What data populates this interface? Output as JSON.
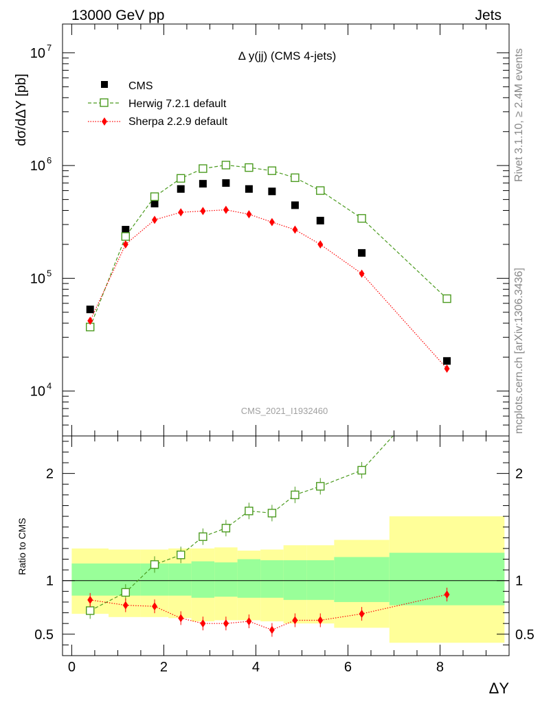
{
  "header": {
    "left": "13000 GeV pp",
    "right": "Jets"
  },
  "side_labels": {
    "rivet": "Rivet 3.1.10, ≥ 2.4M events",
    "source": "mcplots.cern.ch [arXiv:1306.3436]"
  },
  "chart_data": [
    {
      "type": "scatter",
      "title": "Δ y(jj) (CMS 4-jets)",
      "analysis_tag": "CMS_2021_I1932460",
      "ylabel": "dσ/dΔY [pb]",
      "xlabel": "ΔY",
      "xlim": [
        -0.2,
        9.5
      ],
      "ylim": [
        4000,
        18000000
      ],
      "yscale": "log",
      "yticks": [
        {
          "value": 10000,
          "base": "10",
          "exp": "4"
        },
        {
          "value": 100000,
          "base": "10",
          "exp": "5"
        },
        {
          "value": 1000000,
          "base": "10",
          "exp": "6"
        },
        {
          "value": 10000000,
          "base": "10",
          "exp": "7"
        }
      ],
      "legend_position": "top-left",
      "series": [
        {
          "name": "CMS",
          "color": "#000000",
          "marker": "filled-square",
          "x": [
            0.4,
            1.17,
            1.8,
            2.37,
            2.85,
            3.35,
            3.85,
            4.35,
            4.85,
            5.4,
            6.3,
            8.15
          ],
          "y": [
            53000,
            270000,
            460000,
            620000,
            690000,
            700000,
            620000,
            590000,
            445000,
            325000,
            168000,
            18500
          ]
        },
        {
          "name": "Herwig 7.2.1 default",
          "color": "#4a9a1e",
          "marker": "open-square",
          "line": "dashed",
          "x": [
            0.4,
            1.17,
            1.8,
            2.37,
            2.85,
            3.35,
            3.85,
            4.35,
            4.85,
            5.4,
            6.3,
            8.15
          ],
          "y": [
            37000,
            235000,
            530000,
            770000,
            940000,
            1010000,
            960000,
            900000,
            780000,
            600000,
            340000,
            66000
          ]
        },
        {
          "name": "Sherpa 2.2.9 default",
          "color": "#ff0000",
          "marker": "filled-diamond",
          "line": "dotted",
          "x": [
            0.4,
            1.17,
            1.8,
            2.37,
            2.85,
            3.35,
            3.85,
            4.35,
            4.85,
            5.4,
            6.3,
            8.15
          ],
          "y": [
            42000,
            200000,
            330000,
            385000,
            395000,
            405000,
            370000,
            315000,
            270000,
            200000,
            110000,
            15800
          ]
        }
      ]
    },
    {
      "type": "scatter",
      "ylabel": "Ratio to CMS",
      "xlabel": "ΔY",
      "xlim": [
        -0.2,
        9.5
      ],
      "ylim": [
        0.3,
        2.35
      ],
      "yticks": [
        {
          "value": 0.5,
          "label": "0.5"
        },
        {
          "value": 1,
          "label": "1"
        },
        {
          "value": 2,
          "label": "2"
        }
      ],
      "xticks": [
        {
          "value": 0,
          "label": "0"
        },
        {
          "value": 2,
          "label": "2"
        },
        {
          "value": 4,
          "label": "4"
        },
        {
          "value": 6,
          "label": "6"
        },
        {
          "value": 8,
          "label": "8"
        }
      ],
      "reference_line": 1,
      "uncertainty_bands": [
        {
          "x0": 0.0,
          "x1": 0.8,
          "stat_lo": 0.86,
          "stat_hi": 1.16,
          "tot_lo": 0.69,
          "tot_hi": 1.3
        },
        {
          "x0": 0.8,
          "x1": 1.5,
          "stat_lo": 0.86,
          "stat_hi": 1.16,
          "tot_lo": 0.66,
          "tot_hi": 1.29
        },
        {
          "x0": 1.5,
          "x1": 2.1,
          "stat_lo": 0.86,
          "stat_hi": 1.16,
          "tot_lo": 0.66,
          "tot_hi": 1.29
        },
        {
          "x0": 2.1,
          "x1": 2.6,
          "stat_lo": 0.86,
          "stat_hi": 1.16,
          "tot_lo": 0.65,
          "tot_hi": 1.3
        },
        {
          "x0": 2.6,
          "x1": 3.1,
          "stat_lo": 0.84,
          "stat_hi": 1.18,
          "tot_lo": 0.62,
          "tot_hi": 1.3
        },
        {
          "x0": 3.1,
          "x1": 3.6,
          "stat_lo": 0.85,
          "stat_hi": 1.17,
          "tot_lo": 0.63,
          "tot_hi": 1.31
        },
        {
          "x0": 3.6,
          "x1": 4.1,
          "stat_lo": 0.84,
          "stat_hi": 1.2,
          "tot_lo": 0.63,
          "tot_hi": 1.28
        },
        {
          "x0": 4.1,
          "x1": 4.6,
          "stat_lo": 0.84,
          "stat_hi": 1.19,
          "tot_lo": 0.62,
          "tot_hi": 1.29
        },
        {
          "x0": 4.6,
          "x1": 5.1,
          "stat_lo": 0.82,
          "stat_hi": 1.19,
          "tot_lo": 0.6,
          "tot_hi": 1.33
        },
        {
          "x0": 5.1,
          "x1": 5.7,
          "stat_lo": 0.82,
          "stat_hi": 1.19,
          "tot_lo": 0.6,
          "tot_hi": 1.33
        },
        {
          "x0": 5.7,
          "x1": 6.9,
          "stat_lo": 0.8,
          "stat_hi": 1.22,
          "tot_lo": 0.56,
          "tot_hi": 1.38
        },
        {
          "x0": 6.9,
          "x1": 9.4,
          "stat_lo": 0.77,
          "stat_hi": 1.26,
          "tot_lo": 0.42,
          "tot_hi": 1.6
        }
      ],
      "band_colors": {
        "stat": "#99ff99",
        "total": "#ffff99"
      },
      "series": [
        {
          "name": "Herwig 7.2.1 default",
          "color": "#4a9a1e",
          "marker": "open-square",
          "line": "dashed",
          "x": [
            0.4,
            1.17,
            1.8,
            2.37,
            2.85,
            3.35,
            3.85,
            4.35,
            4.85,
            5.4,
            6.3,
            7.0
          ],
          "y": [
            0.72,
            0.89,
            1.15,
            1.24,
            1.41,
            1.49,
            1.65,
            1.63,
            1.8,
            1.88,
            2.03,
            2.36
          ],
          "marker_shown": [
            true,
            true,
            true,
            true,
            true,
            true,
            true,
            true,
            true,
            true,
            true,
            false
          ]
        },
        {
          "name": "Sherpa 2.2.9 default",
          "color": "#ff0000",
          "marker": "filled-diamond",
          "line": "dotted",
          "x": [
            0.4,
            1.17,
            1.8,
            2.37,
            2.85,
            3.35,
            3.85,
            4.35,
            4.85,
            5.4,
            6.3,
            8.15
          ],
          "y": [
            0.82,
            0.77,
            0.76,
            0.65,
            0.6,
            0.6,
            0.62,
            0.54,
            0.63,
            0.63,
            0.69,
            0.87
          ]
        }
      ]
    }
  ]
}
